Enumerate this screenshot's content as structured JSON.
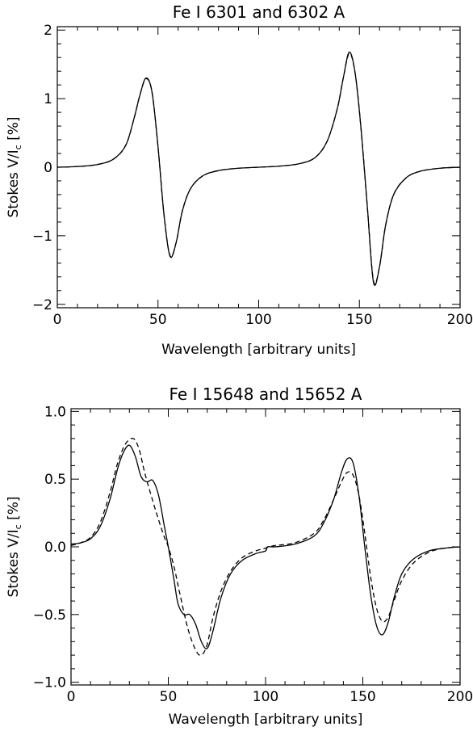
{
  "chart_data": [
    {
      "type": "line",
      "title": "Fe I 6301 and 6302 A",
      "xlabel": "Wavelength [arbitrary units]",
      "ylabel": "Stokes V/I",
      "ylabel_sub": "c",
      "ylabel_suffix": " [%]",
      "xlim": [
        0,
        200
      ],
      "ylim": [
        -2.05,
        2.05
      ],
      "xticks": [
        0,
        50,
        100,
        150,
        200
      ],
      "xtick_labels": [
        "0",
        "50",
        "100",
        "150",
        "200"
      ],
      "yticks": [
        -2,
        -1,
        0,
        1,
        2
      ],
      "ytick_labels": [
        "−2",
        "−1",
        "0",
        "1",
        "2"
      ],
      "grid": false,
      "series": [
        {
          "style": "solid",
          "x": [
            0,
            10,
            20,
            28,
            34,
            38,
            41,
            44,
            47,
            50,
            53,
            56,
            59,
            62,
            66,
            72,
            80,
            90,
            100,
            110,
            120,
            128,
            134,
            139,
            142,
            145,
            148,
            151,
            154,
            157,
            160,
            163,
            167,
            173,
            180,
            190,
            200
          ],
          "y": [
            0.0,
            0.01,
            0.04,
            0.12,
            0.32,
            0.7,
            1.05,
            1.3,
            1.1,
            0.3,
            -0.7,
            -1.3,
            -1.1,
            -0.65,
            -0.32,
            -0.13,
            -0.05,
            -0.015,
            0.0,
            0.015,
            0.05,
            0.14,
            0.38,
            0.85,
            1.3,
            1.68,
            1.35,
            0.5,
            -0.6,
            -1.68,
            -1.45,
            -0.85,
            -0.4,
            -0.16,
            -0.06,
            -0.015,
            0.0
          ]
        },
        {
          "style": "dashed",
          "x": [
            0,
            10,
            20,
            28,
            34,
            38,
            41,
            44,
            47,
            50,
            53,
            56,
            59,
            62,
            66,
            72,
            80,
            90,
            100,
            110,
            120,
            128,
            134,
            139,
            142,
            145,
            148,
            151,
            154,
            157,
            160,
            163,
            167,
            173,
            180,
            190,
            200
          ],
          "y": [
            0.0,
            0.01,
            0.04,
            0.12,
            0.32,
            0.7,
            1.05,
            1.29,
            1.1,
            0.3,
            -0.7,
            -1.29,
            -1.1,
            -0.65,
            -0.32,
            -0.13,
            -0.05,
            -0.015,
            0.0,
            0.015,
            0.05,
            0.14,
            0.38,
            0.85,
            1.3,
            1.66,
            1.35,
            0.5,
            -0.6,
            -1.66,
            -1.45,
            -0.85,
            -0.4,
            -0.16,
            -0.06,
            -0.015,
            0.0
          ]
        }
      ]
    },
    {
      "type": "line",
      "title": "Fe I 15648 and 15652 A",
      "xlabel": "Wavelength [arbitrary units]",
      "ylabel": "Stokes V/I",
      "ylabel_sub": "c",
      "ylabel_suffix": " [%]",
      "xlim": [
        0,
        200
      ],
      "ylim": [
        -1.02,
        1.02
      ],
      "xticks": [
        0,
        50,
        100,
        150,
        200
      ],
      "xtick_labels": [
        "0",
        "50",
        "100",
        "150",
        "200"
      ],
      "yticks": [
        -1.0,
        -0.5,
        0.0,
        0.5,
        1.0
      ],
      "ytick_labels": [
        "−1.0",
        "−0.5",
        "0.0",
        "0.5",
        "1.0"
      ],
      "grid": false,
      "series": [
        {
          "style": "solid",
          "x": [
            0,
            5,
            10,
            15,
            20,
            24,
            27,
            30,
            33,
            36,
            39,
            42,
            45,
            48,
            50,
            53,
            55,
            58,
            61,
            64,
            67,
            70,
            73,
            77,
            82,
            88,
            95,
            100,
            101,
            105,
            115,
            125,
            130,
            135,
            139,
            142,
            145,
            148,
            151,
            154,
            157,
            160,
            163,
            166,
            170,
            176,
            184,
            192,
            200
          ],
          "y": [
            0.02,
            0.03,
            0.06,
            0.15,
            0.35,
            0.58,
            0.7,
            0.75,
            0.67,
            0.52,
            0.48,
            0.49,
            0.38,
            0.15,
            0.0,
            -0.25,
            -0.42,
            -0.5,
            -0.5,
            -0.57,
            -0.7,
            -0.75,
            -0.62,
            -0.38,
            -0.2,
            -0.1,
            -0.05,
            -0.03,
            0.0,
            0.0,
            0.02,
            0.08,
            0.18,
            0.35,
            0.55,
            0.65,
            0.62,
            0.38,
            0.0,
            -0.35,
            -0.58,
            -0.65,
            -0.56,
            -0.38,
            -0.2,
            -0.09,
            -0.03,
            -0.01,
            0.0
          ]
        },
        {
          "style": "dashed",
          "x": [
            0,
            5,
            10,
            15,
            20,
            24,
            28,
            32,
            35,
            38,
            42,
            45,
            48,
            50,
            53,
            56,
            60,
            64,
            67,
            70,
            73,
            77,
            82,
            88,
            95,
            100,
            105,
            115,
            125,
            130,
            135,
            139,
            142,
            145,
            148,
            151,
            154,
            157,
            160,
            163,
            166,
            170,
            176,
            184,
            192,
            200
          ],
          "y": [
            0.01,
            0.03,
            0.07,
            0.18,
            0.4,
            0.62,
            0.76,
            0.8,
            0.72,
            0.54,
            0.34,
            0.2,
            0.07,
            0.0,
            -0.15,
            -0.35,
            -0.6,
            -0.76,
            -0.8,
            -0.72,
            -0.52,
            -0.33,
            -0.18,
            -0.08,
            -0.03,
            -0.01,
            0.01,
            0.03,
            0.1,
            0.2,
            0.35,
            0.48,
            0.55,
            0.53,
            0.38,
            0.1,
            -0.22,
            -0.45,
            -0.55,
            -0.52,
            -0.4,
            -0.25,
            -0.12,
            -0.04,
            -0.01,
            0.0
          ]
        }
      ]
    }
  ]
}
